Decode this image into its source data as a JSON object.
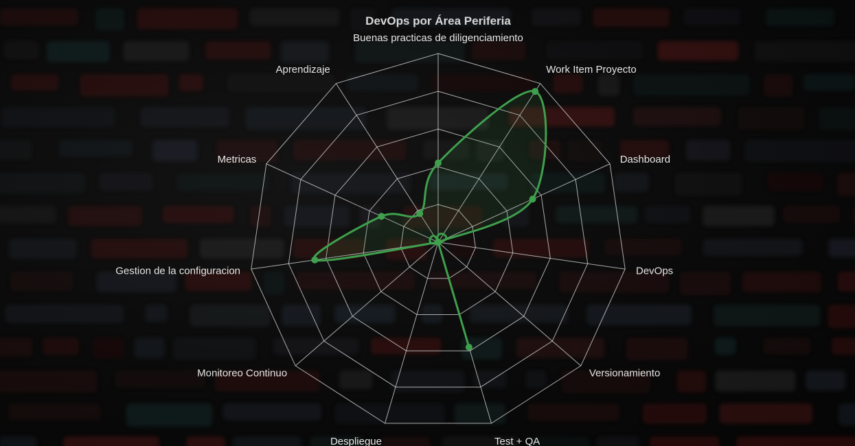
{
  "chart_data": {
    "type": "radar",
    "title": "DevOps por Área Periferia",
    "categories": [
      "Buenas practicas de diligenciamiento",
      "Work Item Proyecto",
      "Dashboard",
      "DevOps",
      "Versionamiento",
      "Test + QA",
      "Despliegue",
      "Monitoreo Continuo",
      "Gestion de la configuracion",
      "Metricas",
      "Aprendizaje"
    ],
    "series": [
      {
        "values": [
          42,
          95,
          55,
          0,
          0,
          58,
          0,
          0,
          66,
          33,
          18
        ]
      }
    ],
    "rlim": [
      0,
      100
    ],
    "grid": true,
    "legend": "none"
  },
  "colors": {
    "series_line": "#3fa04d",
    "series_fill": "rgba(60, 150, 70, 0.13)",
    "grid": "#c9c9c9",
    "title": "#d8d8d8",
    "label": "#e6e6e6"
  }
}
